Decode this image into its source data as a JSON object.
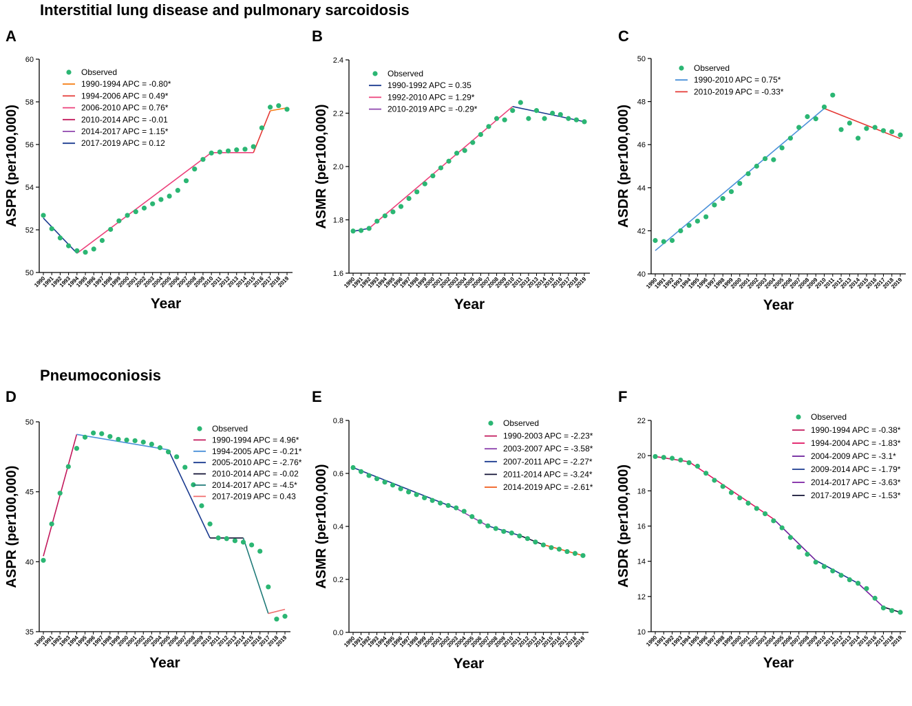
{
  "figure": {
    "section_ild_title": "Interstitial lung disease and pulmonary sarcoidosis",
    "section_pneumo_title": "Pneumoconiosis"
  },
  "chart_data": [
    {
      "id": "A",
      "letter": "A",
      "type": "line",
      "title": "",
      "xlabel": "Year",
      "ylabel": "ASPR (per100,000)",
      "ylim": [
        50,
        60
      ],
      "yticks": [
        50,
        52,
        54,
        56,
        58,
        60
      ],
      "ytick_labels": [
        "50",
        "52",
        "54",
        "56",
        "58",
        "60"
      ],
      "x": [
        1990,
        1991,
        1992,
        1993,
        1994,
        1995,
        1996,
        1997,
        1998,
        1999,
        2000,
        2001,
        2002,
        2003,
        2004,
        2005,
        2006,
        2007,
        2008,
        2009,
        2010,
        2011,
        2012,
        2013,
        2014,
        2015,
        2016,
        2017,
        2018,
        2019
      ],
      "observed": [
        52.68,
        52.05,
        51.62,
        51.25,
        51.02,
        50.95,
        51.1,
        51.5,
        52.02,
        52.42,
        52.68,
        52.85,
        53.02,
        53.22,
        53.42,
        53.58,
        53.85,
        54.3,
        54.85,
        55.3,
        55.6,
        55.65,
        55.7,
        55.75,
        55.78,
        55.9,
        56.78,
        57.75,
        57.82,
        57.65
      ],
      "legend": {
        "observed_label": "Observed",
        "observed_color": "#2bb673",
        "position": "top-left"
      },
      "segments": [
        {
          "label": "1990-1994 APC = -0.80*",
          "color": "#f57f17",
          "start": 1990,
          "end": 1994,
          "y0": 52.55,
          "y1": 50.9
        },
        {
          "label": "1994-2006 APC = 0.49*",
          "color": "#e53935",
          "start": 1994,
          "end": 2006,
          "y0": 50.9,
          "y1": 53.92
        },
        {
          "label": "2006-2010 APC = 0.76*",
          "color": "#ec407a",
          "start": 2006,
          "end": 2010,
          "y0": 53.92,
          "y1": 55.62
        },
        {
          "label": "2010-2014 APC = -0.01",
          "color": "#c2185b",
          "start": 2010,
          "end": 2014,
          "y0": 55.62,
          "y1": 55.62
        },
        {
          "label": "2014-2017 APC = 1.15*",
          "color": "#8e44ad",
          "start": 2014,
          "end": 2017,
          "y0": 55.62,
          "y1": 57.58
        },
        {
          "label": "2017-2019 APC = 0.12",
          "color": "#1a3a8f",
          "start": 2017,
          "end": 2019,
          "y0": 57.58,
          "y1": 57.72
        }
      ],
      "draw_order": [
        {
          "color": "#1a3a8f",
          "start": 1990,
          "end": 1994,
          "y0": 52.55,
          "y1": 50.9
        },
        {
          "color": "#ec407a",
          "start": 1994,
          "end": 2010,
          "y0": 50.9,
          "y1": 55.62
        },
        {
          "color": "#ec407a",
          "start": 2010,
          "end": 2015,
          "y0": 55.62,
          "y1": 55.62
        },
        {
          "color": "#e53935",
          "start": 2015,
          "end": 2017,
          "y0": 55.62,
          "y1": 57.58
        },
        {
          "color": "#f57f17",
          "start": 2017,
          "end": 2019,
          "y0": 57.58,
          "y1": 57.72
        }
      ]
    },
    {
      "id": "B",
      "letter": "B",
      "type": "line",
      "title": "",
      "xlabel": "Year",
      "ylabel": "ASMR (per100,000)",
      "ylim": [
        1.6,
        2.4
      ],
      "yticks": [
        1.6,
        1.8,
        2.0,
        2.2,
        2.4
      ],
      "ytick_labels": [
        "1.6",
        "1.8",
        "2.0",
        "2.2",
        "2.4"
      ],
      "x": [
        1990,
        1991,
        1992,
        1993,
        1994,
        1995,
        1996,
        1997,
        1998,
        1999,
        2000,
        2001,
        2002,
        2003,
        2004,
        2005,
        2006,
        2007,
        2008,
        2009,
        2010,
        2011,
        2012,
        2013,
        2014,
        2015,
        2016,
        2017,
        2018,
        2019
      ],
      "observed": [
        1.758,
        1.76,
        1.768,
        1.795,
        1.815,
        1.83,
        1.85,
        1.88,
        1.905,
        1.935,
        1.965,
        1.995,
        2.02,
        2.05,
        2.06,
        2.09,
        2.12,
        2.15,
        2.18,
        2.175,
        2.21,
        2.24,
        2.18,
        2.21,
        2.18,
        2.2,
        2.195,
        2.18,
        2.175,
        2.168
      ],
      "legend": {
        "observed_label": "Observed",
        "observed_color": "#2bb673",
        "position": "top-left"
      },
      "segments": [
        {
          "label": "1990-1992 APC = 0.35",
          "color": "#1a3a8f",
          "start": 1990,
          "end": 1992,
          "y0": 1.757,
          "y1": 1.768
        },
        {
          "label": "1992-2010 APC = 1.29*",
          "color": "#ec407a",
          "start": 1992,
          "end": 2010,
          "y0": 1.768,
          "y1": 2.225
        },
        {
          "label": "2010-2019 APC = -0.29*",
          "color": "#8e44ad",
          "start": 2010,
          "end": 2019,
          "y0": 2.225,
          "y1": 2.168
        }
      ],
      "draw_order": [
        {
          "color": "#1a3a8f",
          "start": 1990,
          "end": 1992,
          "y0": 1.757,
          "y1": 1.768
        },
        {
          "color": "#ec407a",
          "start": 1992,
          "end": 2010,
          "y0": 1.768,
          "y1": 2.225
        },
        {
          "color": "#1a3a8f",
          "start": 2010,
          "end": 2019,
          "y0": 2.225,
          "y1": 2.168
        }
      ]
    },
    {
      "id": "C",
      "letter": "C",
      "type": "line",
      "title": "",
      "xlabel": "Year",
      "ylabel": "ASDR (per100,000)",
      "ylim": [
        40,
        50
      ],
      "yticks": [
        40,
        42,
        44,
        46,
        48,
        50
      ],
      "ytick_labels": [
        "40",
        "42",
        "44",
        "46",
        "48",
        "50"
      ],
      "x": [
        1990,
        1991,
        1992,
        1993,
        1994,
        1995,
        1996,
        1997,
        1998,
        1999,
        2000,
        2001,
        2002,
        2003,
        2004,
        2005,
        2006,
        2007,
        2008,
        2009,
        2010,
        2011,
        2012,
        2013,
        2014,
        2015,
        2016,
        2017,
        2018,
        2019
      ],
      "observed": [
        41.55,
        41.5,
        41.55,
        42.0,
        42.25,
        42.45,
        42.65,
        43.2,
        43.5,
        43.82,
        44.2,
        44.65,
        45.0,
        45.35,
        45.3,
        45.85,
        46.3,
        46.8,
        47.3,
        47.2,
        47.75,
        48.3,
        46.7,
        47.0,
        46.3,
        46.75,
        46.8,
        46.65,
        46.6,
        46.45
      ],
      "legend": {
        "observed_label": "Observed",
        "observed_color": "#2bb673",
        "position": "top-left"
      },
      "segments": [
        {
          "label": "1990-2010 APC = 0.75*",
          "color": "#4a90d9",
          "start": 1990,
          "end": 2010,
          "y0": 41.08,
          "y1": 47.68
        },
        {
          "label": "2010-2019 APC = -0.33*",
          "color": "#e53935",
          "start": 2010,
          "end": 2019,
          "y0": 47.68,
          "y1": 46.28
        }
      ],
      "draw_order": [
        {
          "color": "#4a90d9",
          "start": 1990,
          "end": 2010,
          "y0": 41.08,
          "y1": 47.68
        },
        {
          "color": "#e53935",
          "start": 2010,
          "end": 2019,
          "y0": 47.68,
          "y1": 46.28
        }
      ]
    },
    {
      "id": "D",
      "letter": "D",
      "type": "line",
      "title": "",
      "xlabel": "Year",
      "ylabel": "ASPR (per100,000)",
      "ylim": [
        35,
        50
      ],
      "yticks": [
        35,
        40,
        45,
        50
      ],
      "ytick_labels": [
        "35",
        "40",
        "45",
        "50"
      ],
      "x": [
        1990,
        1991,
        1992,
        1993,
        1994,
        1995,
        1996,
        1997,
        1998,
        1999,
        2000,
        2001,
        2002,
        2003,
        2004,
        2005,
        2006,
        2007,
        2008,
        2009,
        2010,
        2011,
        2012,
        2013,
        2014,
        2015,
        2016,
        2017,
        2018,
        2019
      ],
      "observed": [
        40.1,
        42.7,
        44.9,
        46.8,
        48.1,
        48.9,
        49.2,
        49.15,
        48.95,
        48.75,
        48.7,
        48.65,
        48.55,
        48.4,
        48.15,
        47.85,
        47.5,
        46.75,
        45.5,
        44.0,
        42.7,
        41.7,
        41.65,
        41.5,
        41.4,
        41.2,
        40.75,
        38.2,
        35.9,
        36.1
      ],
      "legend": {
        "observed_label": "Observed",
        "observed_color": "#2bb673",
        "position": "right"
      },
      "segments": [
        {
          "label": "1990-1994 APC = 4.96*",
          "color": "#c2185b",
          "start": 1990,
          "end": 1994,
          "y0": 40.4,
          "y1": 49.1
        },
        {
          "label": "1994-2005 APC = -0.21*",
          "color": "#4a90d9",
          "start": 1994,
          "end": 2005,
          "y0": 49.1,
          "y1": 48.0
        },
        {
          "label": "2005-2010 APC = -2.76*",
          "color": "#1a3a8f",
          "start": 2005,
          "end": 2010,
          "y0": 48.0,
          "y1": 41.7
        },
        {
          "label": "2010-2014 APC = -0.02",
          "color": "#111133",
          "start": 2010,
          "end": 2014,
          "y0": 41.7,
          "y1": 41.7
        },
        {
          "label": "2014-2017 APC = -4.5*",
          "color": "#1f7a78",
          "start": 2014,
          "end": 2017,
          "y0": 41.7,
          "y1": 36.3
        },
        {
          "label": "2017-2019 APC = 0.43",
          "color": "#f06c6c",
          "start": 2017,
          "end": 2019,
          "y0": 36.3,
          "y1": 36.6
        }
      ],
      "draw_order": [
        {
          "color": "#c2185b",
          "start": 1990,
          "end": 1994,
          "y0": 40.4,
          "y1": 49.1
        },
        {
          "color": "#4a90d9",
          "start": 1994,
          "end": 2005,
          "y0": 49.1,
          "y1": 48.0
        },
        {
          "color": "#1a3a8f",
          "start": 2005,
          "end": 2010,
          "y0": 48.0,
          "y1": 41.7
        },
        {
          "color": "#111133",
          "start": 2010,
          "end": 2014,
          "y0": 41.7,
          "y1": 41.7
        },
        {
          "color": "#1f7a78",
          "start": 2014,
          "end": 2017,
          "y0": 41.7,
          "y1": 36.3
        },
        {
          "color": "#f06c6c",
          "start": 2017,
          "end": 2019,
          "y0": 36.3,
          "y1": 36.6
        }
      ]
    },
    {
      "id": "E",
      "letter": "E",
      "type": "line",
      "title": "",
      "xlabel": "Year",
      "ylabel": "ASMR (per100,000)",
      "ylim": [
        0,
        0.8
      ],
      "yticks": [
        0,
        0.2,
        0.4,
        0.6,
        0.8
      ],
      "ytick_labels": [
        "0.0",
        "0.2",
        "0.4",
        "0.6",
        "0.8"
      ],
      "x": [
        1990,
        1991,
        1992,
        1993,
        1994,
        1995,
        1996,
        1997,
        1998,
        1999,
        2000,
        2001,
        2002,
        2003,
        2004,
        2005,
        2006,
        2007,
        2008,
        2009,
        2010,
        2011,
        2012,
        2013,
        2014,
        2015,
        2016,
        2017,
        2018,
        2019
      ],
      "observed": [
        0.622,
        0.607,
        0.592,
        0.58,
        0.567,
        0.556,
        0.542,
        0.53,
        0.52,
        0.508,
        0.498,
        0.488,
        0.479,
        0.47,
        0.457,
        0.437,
        0.418,
        0.402,
        0.392,
        0.381,
        0.375,
        0.364,
        0.354,
        0.341,
        0.33,
        0.32,
        0.314,
        0.305,
        0.298,
        0.29
      ],
      "legend": {
        "observed_label": "Observed",
        "observed_color": "#2bb673",
        "position": "right"
      },
      "segments": [
        {
          "label": "1990-2003 APC = -2.23*",
          "color": "#c2185b",
          "start": 1990,
          "end": 2003,
          "y0": 0.622,
          "y1": 0.468
        },
        {
          "label": "2003-2007 APC = -3.58*",
          "color": "#8e44ad",
          "start": 2003,
          "end": 2007,
          "y0": 0.468,
          "y1": 0.402
        },
        {
          "label": "2007-2011 APC = -2.27*",
          "color": "#1a3a8f",
          "start": 2007,
          "end": 2011,
          "y0": 0.402,
          "y1": 0.366
        },
        {
          "label": "2011-2014 APC = -3.24*",
          "color": "#111133",
          "start": 2011,
          "end": 2014,
          "y0": 0.366,
          "y1": 0.331
        },
        {
          "label": "2014-2019 APC = -2.61*",
          "color": "#f05a1a",
          "start": 2014,
          "end": 2019,
          "y0": 0.331,
          "y1": 0.29
        }
      ],
      "draw_order": [
        {
          "color": "#1a3a8f",
          "start": 1990,
          "end": 2003,
          "y0": 0.622,
          "y1": 0.468
        },
        {
          "color": "#8e44ad",
          "start": 2003,
          "end": 2007,
          "y0": 0.468,
          "y1": 0.402
        },
        {
          "color": "#1a3a8f",
          "start": 2007,
          "end": 2011,
          "y0": 0.402,
          "y1": 0.366
        },
        {
          "color": "#111133",
          "start": 2011,
          "end": 2014,
          "y0": 0.366,
          "y1": 0.331
        },
        {
          "color": "#f05a1a",
          "start": 2014,
          "end": 2019,
          "y0": 0.331,
          "y1": 0.29
        }
      ]
    },
    {
      "id": "F",
      "letter": "F",
      "type": "line",
      "title": "",
      "xlabel": "Year",
      "ylabel": "ASDR (per100,000)",
      "ylim": [
        10,
        22
      ],
      "yticks": [
        10,
        12,
        14,
        16,
        18,
        20,
        22
      ],
      "ytick_labels": [
        "10",
        "12",
        "14",
        "16",
        "18",
        "20",
        "22"
      ],
      "x": [
        1990,
        1991,
        1992,
        1993,
        1994,
        1995,
        1996,
        1997,
        1998,
        1999,
        2000,
        2001,
        2002,
        2003,
        2004,
        2005,
        2006,
        2007,
        2008,
        2009,
        2010,
        2011,
        2012,
        2013,
        2014,
        2015,
        2016,
        2017,
        2018,
        2019
      ],
      "observed": [
        19.95,
        19.9,
        19.85,
        19.75,
        19.6,
        19.4,
        19.0,
        18.6,
        18.25,
        17.9,
        17.6,
        17.3,
        17.0,
        16.7,
        16.3,
        15.9,
        15.35,
        14.8,
        14.4,
        13.95,
        13.7,
        13.45,
        13.2,
        12.95,
        12.75,
        12.45,
        11.9,
        11.35,
        11.2,
        11.1
      ],
      "legend": {
        "observed_label": "Observed",
        "observed_color": "#2bb673",
        "position": "right"
      },
      "segments": [
        {
          "label": "1990-1994 APC = -0.38*",
          "color": "#c2185b",
          "start": 1990,
          "end": 1994,
          "y0": 19.95,
          "y1": 19.65
        },
        {
          "label": "1994-2004 APC = -1.83*",
          "color": "#e0115f",
          "start": 1994,
          "end": 2004,
          "y0": 19.65,
          "y1": 16.4
        },
        {
          "label": "2004-2009 APC = -3.1*",
          "color": "#6a1b9a",
          "start": 2004,
          "end": 2009,
          "y0": 16.4,
          "y1": 14.05
        },
        {
          "label": "2009-2014 APC = -1.79*",
          "color": "#1a3a8f",
          "start": 2009,
          "end": 2014,
          "y0": 14.05,
          "y1": 12.75
        },
        {
          "label": "2014-2017 APC = -3.63*",
          "color": "#7b1fa2",
          "start": 2014,
          "end": 2017,
          "y0": 12.75,
          "y1": 11.4
        },
        {
          "label": "2017-2019 APC = -1.53*",
          "color": "#111133",
          "start": 2017,
          "end": 2019,
          "y0": 11.4,
          "y1": 11.1
        }
      ],
      "draw_order": [
        {
          "color": "#c2185b",
          "start": 1990,
          "end": 1994,
          "y0": 19.95,
          "y1": 19.65
        },
        {
          "color": "#e0115f",
          "start": 1994,
          "end": 2004,
          "y0": 19.65,
          "y1": 16.4
        },
        {
          "color": "#6a1b9a",
          "start": 2004,
          "end": 2009,
          "y0": 16.4,
          "y1": 14.05
        },
        {
          "color": "#1a3a8f",
          "start": 2009,
          "end": 2014,
          "y0": 14.05,
          "y1": 12.75
        },
        {
          "color": "#7b1fa2",
          "start": 2014,
          "end": 2017,
          "y0": 12.75,
          "y1": 11.4
        },
        {
          "color": "#111133",
          "start": 2017,
          "end": 2019,
          "y0": 11.4,
          "y1": 11.1
        }
      ]
    }
  ]
}
